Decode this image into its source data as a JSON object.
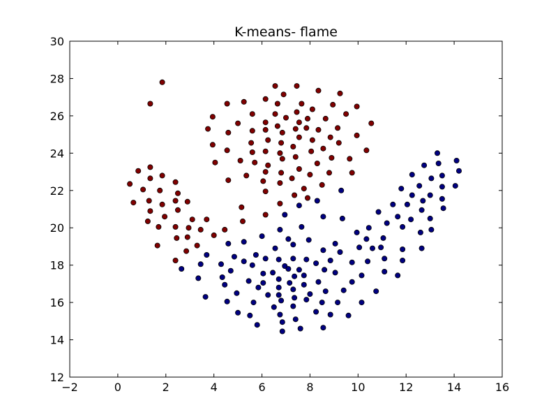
{
  "chart_data": {
    "type": "scatter",
    "title": "K-means- flame",
    "xlabel": "",
    "ylabel": "",
    "xlim": [
      -2,
      16
    ],
    "ylim": [
      12,
      30
    ],
    "xticks": [
      -2,
      0,
      2,
      4,
      6,
      8,
      10,
      12,
      14,
      16
    ],
    "yticks": [
      12,
      14,
      16,
      18,
      20,
      22,
      24,
      26,
      28,
      30
    ],
    "grid": false,
    "legend": "none",
    "series": [
      {
        "color": "#800000",
        "points": [
          [
            1.85,
            27.8
          ],
          [
            1.35,
            26.65
          ],
          [
            6.55,
            27.6
          ],
          [
            7.45,
            27.6
          ],
          [
            6.9,
            27.15
          ],
          [
            8.35,
            27.35
          ],
          [
            9.25,
            27.2
          ],
          [
            6.15,
            26.9
          ],
          [
            6.65,
            26.65
          ],
          [
            7.65,
            26.65
          ],
          [
            8.95,
            26.6
          ],
          [
            9.95,
            26.5
          ],
          [
            4.55,
            26.65
          ],
          [
            5.25,
            26.75
          ],
          [
            3.95,
            25.95
          ],
          [
            5.6,
            26.1
          ],
          [
            6.55,
            26.1
          ],
          [
            7.45,
            26.2
          ],
          [
            8.1,
            26.35
          ],
          [
            9.5,
            26.1
          ],
          [
            7.0,
            25.9
          ],
          [
            7.55,
            25.65
          ],
          [
            7.9,
            25.85
          ],
          [
            8.65,
            25.85
          ],
          [
            5.0,
            25.6
          ],
          [
            6.15,
            25.65
          ],
          [
            6.65,
            25.45
          ],
          [
            10.55,
            25.6
          ],
          [
            3.75,
            25.3
          ],
          [
            4.6,
            25.1
          ],
          [
            5.6,
            25.2
          ],
          [
            6.15,
            25.25
          ],
          [
            6.85,
            25.1
          ],
          [
            7.4,
            25.3
          ],
          [
            7.85,
            25.35
          ],
          [
            8.35,
            25.25
          ],
          [
            9.15,
            25.35
          ],
          [
            5.55,
            24.55
          ],
          [
            6.25,
            24.7
          ],
          [
            6.8,
            24.55
          ],
          [
            7.55,
            24.85
          ],
          [
            8.1,
            24.7
          ],
          [
            8.85,
            24.85
          ],
          [
            9.95,
            24.95
          ],
          [
            3.95,
            24.45
          ],
          [
            5.6,
            24.05
          ],
          [
            6.15,
            24.1
          ],
          [
            6.75,
            24.0
          ],
          [
            7.3,
            24.35
          ],
          [
            8.05,
            24.1
          ],
          [
            8.55,
            24.25
          ],
          [
            9.2,
            24.55
          ],
          [
            4.55,
            24.15
          ],
          [
            10.35,
            24.15
          ],
          [
            4.05,
            23.5
          ],
          [
            5.1,
            23.6
          ],
          [
            5.7,
            23.5
          ],
          [
            6.25,
            23.35
          ],
          [
            6.85,
            23.7
          ],
          [
            7.4,
            23.8
          ],
          [
            8.3,
            23.45
          ],
          [
            8.9,
            23.75
          ],
          [
            9.65,
            23.7
          ],
          [
            7.55,
            23.15
          ],
          [
            6.15,
            23.0
          ],
          [
            6.8,
            22.95
          ],
          [
            8.0,
            22.85
          ],
          [
            8.8,
            22.95
          ],
          [
            9.75,
            22.95
          ],
          [
            5.35,
            22.8
          ],
          [
            6.05,
            22.5
          ],
          [
            6.75,
            22.4
          ],
          [
            7.25,
            22.65
          ],
          [
            4.6,
            22.55
          ],
          [
            8.5,
            22.3
          ],
          [
            6.15,
            21.95
          ],
          [
            7.75,
            22.1
          ],
          [
            7.35,
            21.75
          ],
          [
            7.9,
            21.6
          ],
          [
            6.75,
            21.3
          ],
          [
            5.15,
            21.1
          ],
          [
            6.15,
            20.7
          ],
          [
            5.2,
            20.35
          ],
          [
            0.5,
            22.35
          ],
          [
            0.85,
            23.05
          ],
          [
            1.35,
            23.25
          ],
          [
            1.35,
            22.65
          ],
          [
            1.05,
            22.05
          ],
          [
            1.85,
            22.8
          ],
          [
            1.75,
            22.0
          ],
          [
            2.4,
            22.45
          ],
          [
            2.5,
            21.85
          ],
          [
            0.65,
            21.35
          ],
          [
            1.3,
            21.45
          ],
          [
            1.85,
            21.25
          ],
          [
            2.4,
            21.45
          ],
          [
            2.9,
            21.4
          ],
          [
            1.35,
            20.9
          ],
          [
            1.95,
            20.6
          ],
          [
            2.5,
            20.95
          ],
          [
            3.1,
            20.45
          ],
          [
            3.7,
            20.45
          ],
          [
            1.25,
            20.35
          ],
          [
            1.7,
            20.05
          ],
          [
            2.4,
            20.05
          ],
          [
            2.95,
            20.0
          ],
          [
            3.45,
            19.9
          ],
          [
            4.45,
            19.9
          ],
          [
            1.65,
            19.05
          ],
          [
            2.45,
            19.45
          ],
          [
            2.9,
            19.5
          ],
          [
            3.3,
            19.05
          ],
          [
            4.0,
            19.6
          ],
          [
            2.85,
            18.75
          ],
          [
            2.4,
            18.25
          ]
        ]
      },
      {
        "color": "#000080",
        "points": [
          [
            13.3,
            24.0
          ],
          [
            14.1,
            23.6
          ],
          [
            13.35,
            23.45
          ],
          [
            12.75,
            23.35
          ],
          [
            14.2,
            23.05
          ],
          [
            12.25,
            22.85
          ],
          [
            13.5,
            22.8
          ],
          [
            11.8,
            22.1
          ],
          [
            12.55,
            22.25
          ],
          [
            13.05,
            22.65
          ],
          [
            14.05,
            22.25
          ],
          [
            13.5,
            22.2
          ],
          [
            9.3,
            22.0
          ],
          [
            12.25,
            21.75
          ],
          [
            13.0,
            21.75
          ],
          [
            12.7,
            21.45
          ],
          [
            12.05,
            21.25
          ],
          [
            13.5,
            21.55
          ],
          [
            8.3,
            21.45
          ],
          [
            7.55,
            21.2
          ],
          [
            11.45,
            21.25
          ],
          [
            12.65,
            20.95
          ],
          [
            10.85,
            20.85
          ],
          [
            13.55,
            21.05
          ],
          [
            12.2,
            20.45
          ],
          [
            13.0,
            20.5
          ],
          [
            6.95,
            20.7
          ],
          [
            8.55,
            20.6
          ],
          [
            9.35,
            20.5
          ],
          [
            11.65,
            20.6
          ],
          [
            11.2,
            20.25
          ],
          [
            7.65,
            20.05
          ],
          [
            10.45,
            20.0
          ],
          [
            11.85,
            20.05
          ],
          [
            13.05,
            19.9
          ],
          [
            6.75,
            19.9
          ],
          [
            9.95,
            19.75
          ],
          [
            12.6,
            19.75
          ],
          [
            6.0,
            19.55
          ],
          [
            7.1,
            19.4
          ],
          [
            7.95,
            19.35
          ],
          [
            10.35,
            19.4
          ],
          [
            11.05,
            19.45
          ],
          [
            5.25,
            19.25
          ],
          [
            4.6,
            19.15
          ],
          [
            7.3,
            19.1
          ],
          [
            9.05,
            19.15
          ],
          [
            10.95,
            18.95
          ],
          [
            10.05,
            18.95
          ],
          [
            11.85,
            18.85
          ],
          [
            12.65,
            18.9
          ],
          [
            6.55,
            18.9
          ],
          [
            8.55,
            18.8
          ],
          [
            5.75,
            18.55
          ],
          [
            9.25,
            18.7
          ],
          [
            10.6,
            18.9
          ],
          [
            3.7,
            18.55
          ],
          [
            4.85,
            18.45
          ],
          [
            6.15,
            18.35
          ],
          [
            7.3,
            18.35
          ],
          [
            7.85,
            18.3
          ],
          [
            8.85,
            18.25
          ],
          [
            11.1,
            18.35
          ],
          [
            11.85,
            18.25
          ],
          [
            5.25,
            18.2
          ],
          [
            6.7,
            18.3
          ],
          [
            9.75,
            18.15
          ],
          [
            10.4,
            18.2
          ],
          [
            3.45,
            18.05
          ],
          [
            4.3,
            18.05
          ],
          [
            5.6,
            18.0
          ],
          [
            6.95,
            17.95
          ],
          [
            8.25,
            18.1
          ],
          [
            2.65,
            17.8
          ],
          [
            7.1,
            17.8
          ],
          [
            7.55,
            17.75
          ],
          [
            6.45,
            17.6
          ],
          [
            9.05,
            17.6
          ],
          [
            4.7,
            17.7
          ],
          [
            8.6,
            17.75
          ],
          [
            7.75,
            17.45
          ],
          [
            6.05,
            17.55
          ],
          [
            11.1,
            17.65
          ],
          [
            7.35,
            17.4
          ],
          [
            11.65,
            17.45
          ],
          [
            3.35,
            17.3
          ],
          [
            4.35,
            17.35
          ],
          [
            10.15,
            17.45
          ],
          [
            6.7,
            17.25
          ],
          [
            5.45,
            17.15
          ],
          [
            7.15,
            17.05
          ],
          [
            8.35,
            17.1
          ],
          [
            9.75,
            17.1
          ],
          [
            4.45,
            16.95
          ],
          [
            6.05,
            17.05
          ],
          [
            7.75,
            16.95
          ],
          [
            5.85,
            16.8
          ],
          [
            6.7,
            16.8
          ],
          [
            7.3,
            16.7
          ],
          [
            9.4,
            16.65
          ],
          [
            10.75,
            16.6
          ],
          [
            4.95,
            16.5
          ],
          [
            6.25,
            16.4
          ],
          [
            6.7,
            16.4
          ],
          [
            8.65,
            16.6
          ],
          [
            8.0,
            16.45
          ],
          [
            3.65,
            16.3
          ],
          [
            7.35,
            16.25
          ],
          [
            4.55,
            16.05
          ],
          [
            5.65,
            16.0
          ],
          [
            6.8,
            16.1
          ],
          [
            7.85,
            16.15
          ],
          [
            8.5,
            16.0
          ],
          [
            9.15,
            16.0
          ],
          [
            10.15,
            16.0
          ],
          [
            7.3,
            15.8
          ],
          [
            6.5,
            15.75
          ],
          [
            5.0,
            15.45
          ],
          [
            8.25,
            15.5
          ],
          [
            5.5,
            15.3
          ],
          [
            6.75,
            15.35
          ],
          [
            8.85,
            15.35
          ],
          [
            9.6,
            15.3
          ],
          [
            7.4,
            15.1
          ],
          [
            6.85,
            14.95
          ],
          [
            5.8,
            14.8
          ],
          [
            8.55,
            14.65
          ],
          [
            7.6,
            14.6
          ],
          [
            6.85,
            14.45
          ]
        ]
      }
    ]
  }
}
